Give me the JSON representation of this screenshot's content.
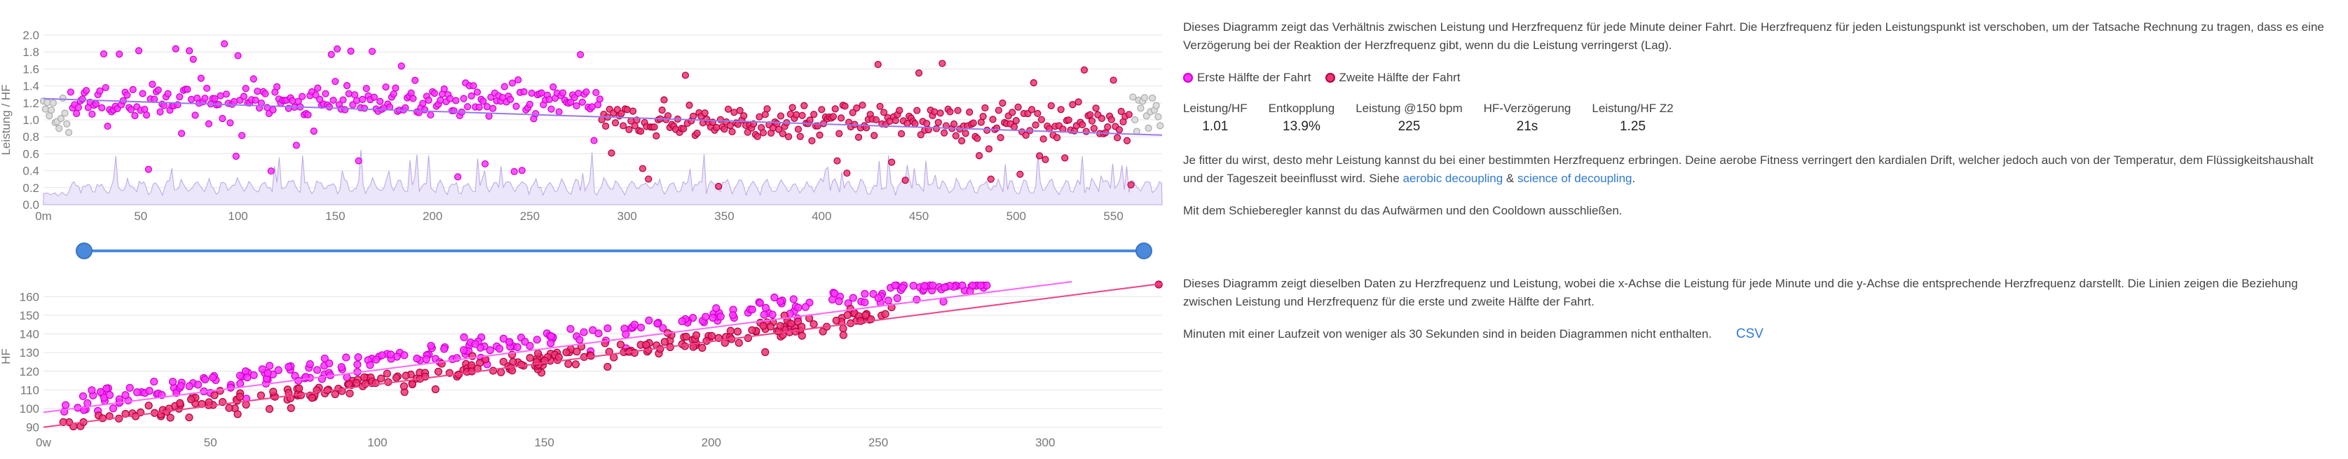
{
  "colors": {
    "first_half": "#ff33ff",
    "first_half_stroke": "#cc00cc",
    "second_half": "#ee3377",
    "second_half_stroke": "#b0003a",
    "hr_area": "#b9a5e6",
    "trend_top": "#9977ee",
    "trend_first": "#ff66ff",
    "trend_second": "#ee4488",
    "excluded": "#bbbbbb",
    "accent": "#4a89dc"
  },
  "chart_data": [
    {
      "type": "scatter",
      "ylabel": "Leistung / HF",
      "xlabel": "",
      "x_ticks": [
        "0m",
        "50",
        "100",
        "150",
        "200",
        "250",
        "300",
        "350",
        "400",
        "450",
        "500",
        "550"
      ],
      "y_ticks": [
        "0.0",
        "0.2",
        "0.4",
        "0.6",
        "0.8",
        "1.0",
        "1.2",
        "1.4",
        "1.6",
        "1.8",
        "2.0"
      ],
      "xlim": [
        0,
        575
      ],
      "ylim": [
        0,
        2.0
      ],
      "grid": true,
      "series": [
        {
          "name": "Erste Hälfte der Fahrt",
          "x_range": [
            14,
            287
          ],
          "center": 1.22,
          "spread": 0.22
        },
        {
          "name": "Zweite Hälfte der Fahrt",
          "x_range": [
            287,
            560
          ],
          "center": 0.98,
          "spread": 0.22
        }
      ],
      "trend": [
        [
          0,
          1.25
        ],
        [
          575,
          0.82
        ]
      ],
      "excluded_ranges": [
        [
          0,
          14
        ],
        [
          560,
          575
        ]
      ]
    },
    {
      "type": "scatter",
      "ylabel": "HF",
      "xlabel": "",
      "x_ticks": [
        "0w",
        "50",
        "100",
        "150",
        "200",
        "250",
        "300"
      ],
      "y_ticks": [
        "90",
        "100",
        "110",
        "120",
        "130",
        "140",
        "150",
        "160"
      ],
      "xlim": [
        0,
        335
      ],
      "ylim": [
        88,
        168
      ],
      "grid": true,
      "series": [
        {
          "name": "Erste Hälfte der Fahrt",
          "trend": [
            [
              0,
              98
            ],
            [
              308,
              171
            ]
          ]
        },
        {
          "name": "Zweite Hälfte der Fahrt",
          "trend": [
            [
              0,
              90
            ],
            [
              335,
              167
            ]
          ]
        }
      ]
    }
  ],
  "panel_top": {
    "description": "Dieses Diagramm zeigt das Verhältnis zwischen Leistung und Herzfrequenz für jede Minute deiner Fahrt. Die Herzfrequenz für jeden Leistungspunkt ist verschoben, um der Tatsache Rechnung zu tragen, dass es eine Verzögerung bei der Reaktion der Herzfrequenz gibt, wenn du die Leistung verringerst (Lag).",
    "legend_first": "Erste Hälfte der Fahrt",
    "legend_second": "Zweite Hälfte der Fahrt",
    "stats": [
      {
        "label": "Leistung/HF",
        "value": "1.01"
      },
      {
        "label": "Entkopplung",
        "value": "13.9%"
      },
      {
        "label": "Leistung @150 bpm",
        "value": "225"
      },
      {
        "label": "HF-Verzögerung",
        "value": "21s"
      },
      {
        "label": "Leistung/HF Z2",
        "value": "1.25"
      }
    ],
    "fitness_text": "Je fitter du wirst, desto mehr Leistung kannst du bei einer bestimmten Herzfrequenz erbringen. Deine aerobe Fitness verringert den kardialen Drift, welcher jedoch auch von der Temperatur, dem Flüssigkeitshaushalt und der Tageszeit beeinflusst wird. Siehe",
    "link1": "aerobic decoupling",
    "amp": "&",
    "link2": "science of decoupling",
    "period": ".",
    "slider_text": "Mit dem Schieberegler kannst du das Aufwärmen und den Cooldown ausschließen."
  },
  "panel_bottom": {
    "description": "Dieses Diagramm zeigt dieselben Daten zu Herzfrequenz und Leistung, wobei die x-Achse die Leistung für jede Minute und die y-Achse die entsprechende Herzfrequenz darstellt. Die Linien zeigen die Beziehung zwischen Leistung und Herzfrequenz für die erste und zweite Hälfte der Fahrt.",
    "note": "Minuten mit einer Laufzeit von weniger als 30 Sekunden sind in beiden Diagrammen nicht enthalten.",
    "csv": "CSV"
  }
}
